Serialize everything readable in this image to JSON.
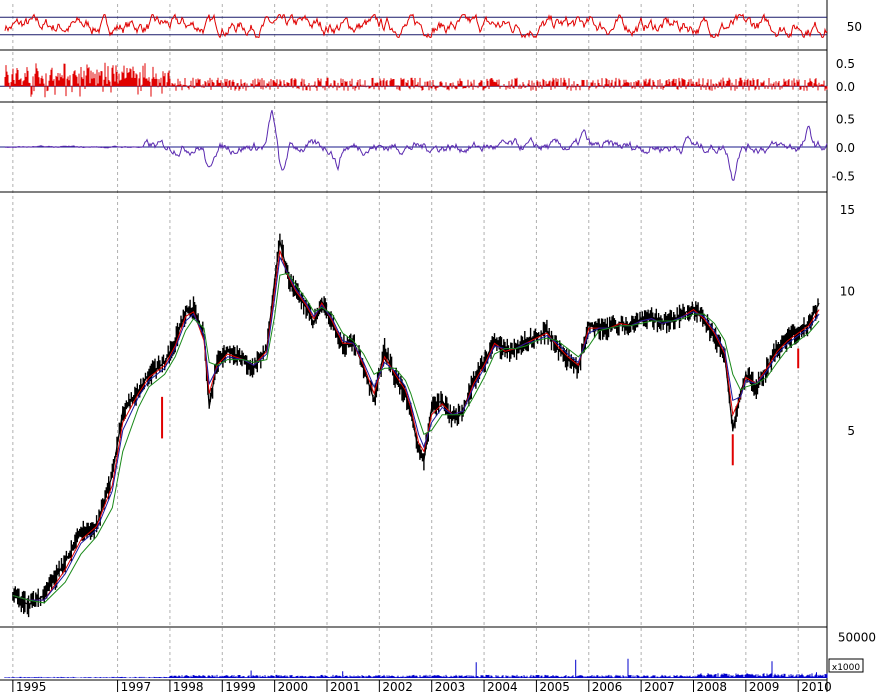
{
  "chart_data": [
    {
      "type": "line",
      "panel": "rsi-oscillator",
      "title": "",
      "ylabel": "",
      "ylim": [
        0,
        100
      ],
      "reference_lines": [
        70,
        30
      ],
      "tick_labels": [
        "50"
      ],
      "tick_values": [
        50
      ],
      "series": [
        {
          "color": "#e00000",
          "style": "noisy oscillator between about 25 and 75"
        }
      ]
    },
    {
      "type": "bar",
      "panel": "momentum-histogram",
      "title": "",
      "ylim": [
        -0.3,
        0.7
      ],
      "tick_labels": [
        "0.5",
        "0.0"
      ],
      "tick_values": [
        0.5,
        0.0
      ],
      "series": [
        {
          "color": "#e00000",
          "style": "vertical bars from zero; large positive bars 1995-1998"
        }
      ]
    },
    {
      "type": "line",
      "panel": "macd-oscillator",
      "title": "",
      "ylim": [
        -0.75,
        0.75
      ],
      "tick_labels": [
        "0.5",
        "0.0",
        "-0.5"
      ],
      "tick_values": [
        0.5,
        0.0,
        -0.5
      ],
      "series": [
        {
          "color": "#5a2ab0",
          "style": "oscillator around zero"
        }
      ]
    },
    {
      "type": "line",
      "panel": "price",
      "title": "",
      "yscale": "log",
      "ylim": [
        1.9,
        16
      ],
      "tick_labels": [
        "15",
        "10",
        "5"
      ],
      "tick_values": [
        15,
        10,
        5
      ],
      "x": [
        1995.0,
        1995.3,
        1995.6,
        1996.0,
        1996.3,
        1996.6,
        1996.9,
        1997.1,
        1997.4,
        1997.6,
        1997.9,
        1998.1,
        1998.3,
        1998.45,
        1998.65,
        1998.75,
        1998.9,
        1999.1,
        1999.4,
        1999.6,
        1999.85,
        2000.0,
        2000.1,
        2000.25,
        2000.4,
        2000.6,
        2000.75,
        2000.9,
        2001.1,
        2001.3,
        2001.5,
        2001.7,
        2001.9,
        2002.1,
        2002.3,
        2002.5,
        2002.6,
        2002.75,
        2002.85,
        2003.0,
        2003.2,
        2003.4,
        2003.6,
        2003.8,
        2004.0,
        2004.2,
        2004.4,
        2004.6,
        2004.8,
        2005.0,
        2005.2,
        2005.4,
        2005.6,
        2005.8,
        2006.0,
        2006.2,
        2006.4,
        2006.6,
        2006.8,
        2007.0,
        2007.2,
        2007.4,
        2007.6,
        2007.8,
        2008.0,
        2008.2,
        2008.4,
        2008.6,
        2008.75,
        2008.9,
        2009.0,
        2009.2,
        2009.4,
        2009.6,
        2009.8,
        2010.0,
        2010.2,
        2010.4
      ],
      "series": [
        {
          "color": "#000000",
          "values": [
            2.2,
            2.1,
            2.2,
            2.6,
            3.0,
            3.1,
            4.0,
            5.5,
            6.1,
            6.6,
            7.0,
            7.8,
            9.0,
            9.2,
            8.0,
            5.6,
            7.0,
            7.4,
            7.1,
            6.8,
            7.5,
            10.5,
            12.8,
            10.8,
            10.0,
            9.2,
            8.5,
            9.5,
            8.5,
            7.6,
            7.8,
            6.8,
            5.8,
            7.5,
            6.5,
            6.0,
            5.5,
            4.5,
            4.3,
            5.6,
            5.8,
            5.3,
            5.5,
            6.4,
            7.0,
            7.8,
            7.4,
            7.5,
            7.8,
            7.9,
            8.2,
            7.5,
            7.1,
            6.8,
            8.5,
            8.3,
            8.3,
            8.5,
            8.4,
            8.7,
            8.8,
            8.5,
            8.6,
            8.9,
            9.2,
            8.6,
            8.0,
            7.2,
            5.0,
            6.0,
            6.6,
            6.2,
            6.8,
            7.5,
            7.9,
            8.2,
            8.5,
            9.4
          ]
        },
        {
          "color": "#e00000",
          "values": [
            2.2,
            2.15,
            2.15,
            2.5,
            2.9,
            3.1,
            3.8,
            5.2,
            6.0,
            6.5,
            6.9,
            7.6,
            8.8,
            9.0,
            7.8,
            6.0,
            6.9,
            7.3,
            7.1,
            6.9,
            7.4,
            10.0,
            12.2,
            10.8,
            10.0,
            9.3,
            8.7,
            9.4,
            8.6,
            7.7,
            7.7,
            6.9,
            6.0,
            7.2,
            6.6,
            6.1,
            5.6,
            4.7,
            4.5,
            5.4,
            5.7,
            5.4,
            5.5,
            6.3,
            6.9,
            7.7,
            7.4,
            7.5,
            7.7,
            7.9,
            8.1,
            7.6,
            7.2,
            6.9,
            8.3,
            8.3,
            8.3,
            8.5,
            8.4,
            8.6,
            8.7,
            8.5,
            8.6,
            8.8,
            9.1,
            8.7,
            8.1,
            7.3,
            5.4,
            5.9,
            6.5,
            6.3,
            6.8,
            7.4,
            7.8,
            8.1,
            8.4,
            9.1
          ]
        },
        {
          "color": "#1a1aa0",
          "values": [
            2.2,
            2.15,
            2.15,
            2.45,
            2.85,
            3.05,
            3.7,
            5.0,
            5.9,
            6.4,
            6.8,
            7.5,
            8.6,
            8.9,
            8.0,
            6.3,
            6.8,
            7.2,
            7.1,
            6.9,
            7.3,
            9.6,
            11.8,
            10.9,
            10.1,
            9.4,
            8.8,
            9.3,
            8.7,
            7.8,
            7.7,
            7.0,
            6.2,
            7.0,
            6.7,
            6.2,
            5.7,
            4.9,
            4.6,
            5.2,
            5.6,
            5.4,
            5.5,
            6.2,
            6.8,
            7.6,
            7.5,
            7.5,
            7.7,
            7.8,
            8.0,
            7.7,
            7.3,
            7.0,
            8.1,
            8.3,
            8.3,
            8.4,
            8.4,
            8.6,
            8.7,
            8.5,
            8.6,
            8.8,
            9.0,
            8.8,
            8.2,
            7.4,
            5.8,
            5.9,
            6.4,
            6.3,
            6.7,
            7.3,
            7.7,
            8.0,
            8.3,
            8.9
          ]
        },
        {
          "color": "#1a8a1a",
          "values": [
            2.2,
            2.15,
            2.12,
            2.35,
            2.7,
            2.95,
            3.4,
            4.5,
            5.6,
            6.2,
            6.6,
            7.2,
            8.2,
            8.7,
            8.3,
            7.0,
            6.9,
            7.1,
            7.1,
            7.0,
            7.1,
            8.8,
            10.8,
            10.9,
            10.3,
            9.6,
            9.0,
            9.2,
            8.9,
            8.1,
            7.8,
            7.3,
            6.6,
            6.8,
            6.8,
            6.4,
            6.0,
            5.3,
            4.9,
            5.0,
            5.4,
            5.4,
            5.4,
            5.9,
            6.5,
            7.3,
            7.5,
            7.5,
            7.6,
            7.8,
            7.9,
            7.8,
            7.5,
            7.2,
            7.6,
            8.2,
            8.3,
            8.4,
            8.4,
            8.5,
            8.6,
            8.6,
            8.6,
            8.7,
            8.9,
            8.9,
            8.5,
            7.8,
            6.6,
            6.1,
            6.2,
            6.3,
            6.5,
            7.0,
            7.5,
            7.8,
            8.1,
            8.6
          ]
        }
      ],
      "annotations": [
        {
          "x": 1997.85,
          "low": 4.8,
          "high": 5.9,
          "color": "#e00000"
        },
        {
          "x": 2008.75,
          "low": 4.2,
          "high": 4.9,
          "color": "#e00000"
        },
        {
          "x": 2010.0,
          "low": 6.8,
          "high": 7.5,
          "color": "#e00000"
        }
      ]
    },
    {
      "type": "bar",
      "panel": "volume",
      "title": "",
      "ylim": [
        0,
        60000
      ],
      "tick_labels": [
        "50000"
      ],
      "tick_values": [
        50000
      ],
      "unit_label": "x1000",
      "series": [
        {
          "color": "#0000cc",
          "style": "volume bars"
        }
      ],
      "spikes": [
        {
          "x": 1999.55,
          "value": 9000
        },
        {
          "x": 2001.3,
          "value": 8000
        },
        {
          "x": 2003.85,
          "value": 19000
        },
        {
          "x": 2005.75,
          "value": 22000
        },
        {
          "x": 2006.75,
          "value": 23000
        },
        {
          "x": 2009.5,
          "value": 20000
        },
        {
          "x": 2010.35,
          "value": 7000
        }
      ]
    }
  ],
  "x_axis": {
    "range": [
      1994.85,
      2010.55
    ],
    "ticks": [
      {
        "label": "1995",
        "value": 1995
      },
      {
        "label": "1997",
        "value": 1997
      },
      {
        "label": "1998",
        "value": 1998
      },
      {
        "label": "1999",
        "value": 1999
      },
      {
        "label": "2000",
        "value": 2000
      },
      {
        "label": "2001",
        "value": 2001
      },
      {
        "label": "2002",
        "value": 2002
      },
      {
        "label": "2003",
        "value": 2003
      },
      {
        "label": "2004",
        "value": 2004
      },
      {
        "label": "2005",
        "value": 2005
      },
      {
        "label": "2006",
        "value": 2006
      },
      {
        "label": "2007",
        "value": 2007
      },
      {
        "label": "2008",
        "value": 2008
      },
      {
        "label": "2009",
        "value": 2009
      },
      {
        "label": "2010",
        "value": 2010
      }
    ],
    "gridlines": "dashed vertical at each year"
  },
  "colors": {
    "frame": "#000000",
    "grid": "#b0b0b0",
    "oscillator_red": "#e00000",
    "macd_purple": "#5a2ab0",
    "volume_blue": "#0000cc"
  }
}
